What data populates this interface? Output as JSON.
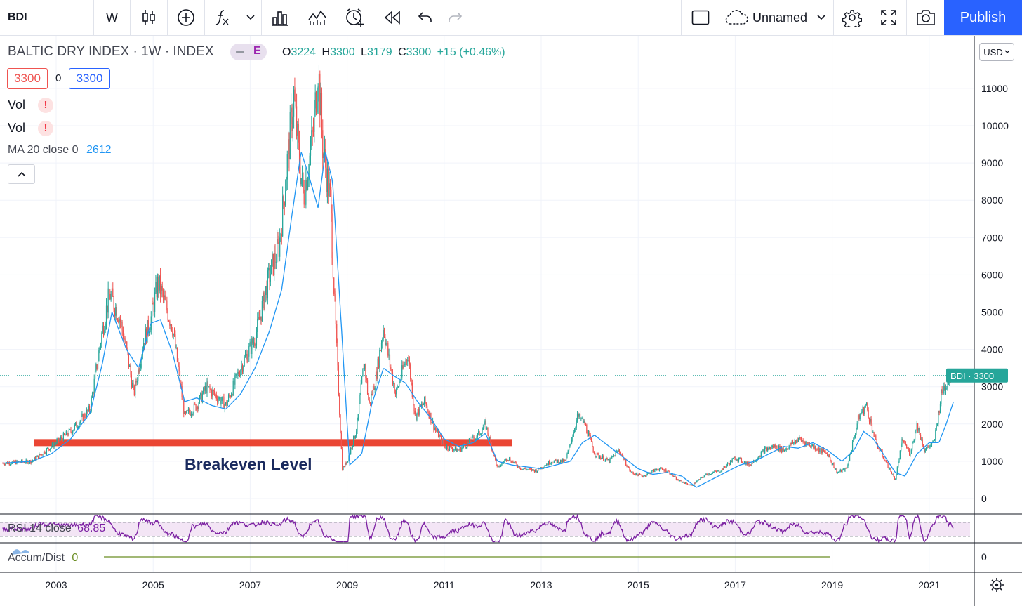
{
  "toolbar": {
    "symbol": "BDI",
    "interval": "W",
    "layout_name": "Unnamed",
    "publish_label": "Publish",
    "icons": [
      "candles-icon",
      "add-circle-icon",
      "fx-icon",
      "chevron-down-icon",
      "bar-chart-icon",
      "indicator-chart-icon",
      "alarm-clock-icon",
      "rewind-icon",
      "undo-icon",
      "redo-icon",
      "rectangle-icon",
      "cloud-icon",
      "gear-icon",
      "fullscreen-icon",
      "camera-icon"
    ]
  },
  "legend": {
    "title": "BALTIC DRY INDEX · 1W · INDEX",
    "e_badge": "E",
    "o_label": "O",
    "o_value": "3224",
    "h_label": "H",
    "h_value": "3300",
    "l_label": "L",
    "l_value": "3179",
    "c_label": "C",
    "c_value": "3300",
    "change": "+15 (+0.46%)",
    "bid": "3300",
    "spread": "0",
    "ask": "3300",
    "vol1": "Vol",
    "vol2": "Vol",
    "ma_label": "MA 20 close 0",
    "ma_value": "2612",
    "rsi_label": "RSI 14 close",
    "rsi_value": "68.85",
    "accum_label": "Accum/Dist",
    "accum_value": "0"
  },
  "currency": "USD",
  "price_tag": {
    "symbol": "BDI",
    "value": "3300"
  },
  "annotation": "Breakeven Level",
  "colors": {
    "up": "#26a69a",
    "down": "#ef5350",
    "ma": "#2196f3",
    "breakeven": "#e8321e",
    "rsi": "#7b1fa2",
    "accent": "#2962ff"
  },
  "chart_data": {
    "type": "line",
    "title": "BALTIC DRY INDEX · 1W · INDEX",
    "x_tick_labels": [
      "2003",
      "2005",
      "2007",
      "2009",
      "2011",
      "2013",
      "2015",
      "2017",
      "2019",
      "2021"
    ],
    "y_tick_labels": [
      "0",
      "1000",
      "2000",
      "3000",
      "4000",
      "5000",
      "6000",
      "7000",
      "8000",
      "9000",
      "10000",
      "11000"
    ],
    "ylim": [
      -200,
      11800
    ],
    "breakeven_level": 1500,
    "last_close": 3300,
    "series": [
      {
        "name": "BDI",
        "x": [
          2001.9,
          2002.5,
          2002.9,
          2003.3,
          2003.7,
          2003.95,
          2004.1,
          2004.3,
          2004.45,
          2004.6,
          2004.8,
          2004.95,
          2005.1,
          2005.4,
          2005.65,
          2005.9,
          2006.1,
          2006.5,
          2006.8,
          2007.1,
          2007.4,
          2007.6,
          2007.8,
          2007.9,
          2008.0,
          2008.1,
          2008.3,
          2008.4,
          2008.5,
          2008.65,
          2008.8,
          2008.9,
          2009.0,
          2009.2,
          2009.35,
          2009.45,
          2009.6,
          2009.75,
          2009.85,
          2010.0,
          2010.25,
          2010.4,
          2010.6,
          2010.8,
          2011.0,
          2011.3,
          2011.5,
          2011.7,
          2011.85,
          2012.1,
          2012.3,
          2012.6,
          2012.9,
          2013.2,
          2013.5,
          2013.75,
          2013.9,
          2014.1,
          2014.4,
          2014.6,
          2014.85,
          2015.1,
          2015.4,
          2015.6,
          2015.8,
          2016.1,
          2016.4,
          2016.7,
          2017.0,
          2017.3,
          2017.6,
          2017.8,
          2018.0,
          2018.3,
          2018.6,
          2018.9,
          2019.1,
          2019.3,
          2019.55,
          2019.7,
          2019.9,
          2020.1,
          2020.3,
          2020.45,
          2020.6,
          2020.75,
          2020.9,
          2021.1,
          2021.25,
          2021.35,
          2021.45
        ],
        "values": [
          950,
          1000,
          1400,
          1800,
          2400,
          4500,
          5500,
          4900,
          4000,
          2800,
          4200,
          4800,
          5800,
          4600,
          2200,
          2500,
          3000,
          2500,
          3500,
          4300,
          6000,
          6800,
          9500,
          10800,
          9200,
          8100,
          9800,
          11600,
          9400,
          8000,
          3500,
          800,
          1000,
          1900,
          3700,
          2500,
          3300,
          4600,
          3800,
          2800,
          3900,
          2200,
          2600,
          1900,
          1400,
          1300,
          1500,
          1700,
          2000,
          800,
          1100,
          800,
          750,
          1000,
          1000,
          2200,
          2000,
          1200,
          1000,
          1300,
          700,
          600,
          800,
          750,
          500,
          350,
          650,
          750,
          1100,
          900,
          1300,
          1400,
          1300,
          1600,
          1400,
          1200,
          700,
          800,
          2200,
          2500,
          1500,
          1000,
          500,
          1600,
          1200,
          2000,
          1300,
          1500,
          2800,
          3100,
          3300
        ]
      },
      {
        "name": "MA 20 close 0",
        "x": [
          2001.9,
          2002.5,
          2002.9,
          2003.3,
          2003.7,
          2003.95,
          2004.15,
          2004.45,
          2004.7,
          2004.95,
          2005.15,
          2005.4,
          2005.65,
          2005.9,
          2006.2,
          2006.5,
          2006.8,
          2007.1,
          2007.4,
          2007.65,
          2007.85,
          2008.05,
          2008.2,
          2008.4,
          2008.55,
          2008.7,
          2008.9,
          2009.05,
          2009.3,
          2009.5,
          2009.75,
          2009.95,
          2010.2,
          2010.45,
          2010.7,
          2011.0,
          2011.3,
          2011.6,
          2011.85,
          2012.1,
          2012.4,
          2012.7,
          2013.0,
          2013.3,
          2013.6,
          2013.85,
          2014.1,
          2014.4,
          2014.7,
          2015.0,
          2015.3,
          2015.6,
          2015.9,
          2016.2,
          2016.5,
          2016.8,
          2017.1,
          2017.4,
          2017.7,
          2018.0,
          2018.3,
          2018.6,
          2018.9,
          2019.2,
          2019.45,
          2019.65,
          2019.85,
          2020.1,
          2020.3,
          2020.5,
          2020.75,
          2021.0,
          2021.2,
          2021.35,
          2021.5
        ],
        "values": [
          950,
          1000,
          1200,
          1600,
          2300,
          3600,
          5000,
          4000,
          3500,
          4700,
          4800,
          3900,
          2600,
          2700,
          2500,
          2400,
          2800,
          3500,
          4500,
          5600,
          7500,
          9300,
          8700,
          7800,
          9300,
          8500,
          4200,
          900,
          1200,
          2500,
          3500,
          3300,
          3100,
          2600,
          2200,
          1600,
          1400,
          1500,
          1750,
          1000,
          900,
          850,
          800,
          900,
          1000,
          1500,
          1700,
          1400,
          1100,
          800,
          650,
          700,
          600,
          300,
          500,
          700,
          900,
          1000,
          1200,
          1400,
          1350,
          1500,
          1300,
          1000,
          1300,
          1800,
          1600,
          1100,
          700,
          600,
          1200,
          1500,
          1500,
          2000,
          2600
        ]
      }
    ],
    "rsi": {
      "name": "RSI 14 close",
      "last": 68.85,
      "upper": 70,
      "lower": 30
    },
    "accum_dist": {
      "name": "Accum/Dist",
      "last": 0
    }
  }
}
